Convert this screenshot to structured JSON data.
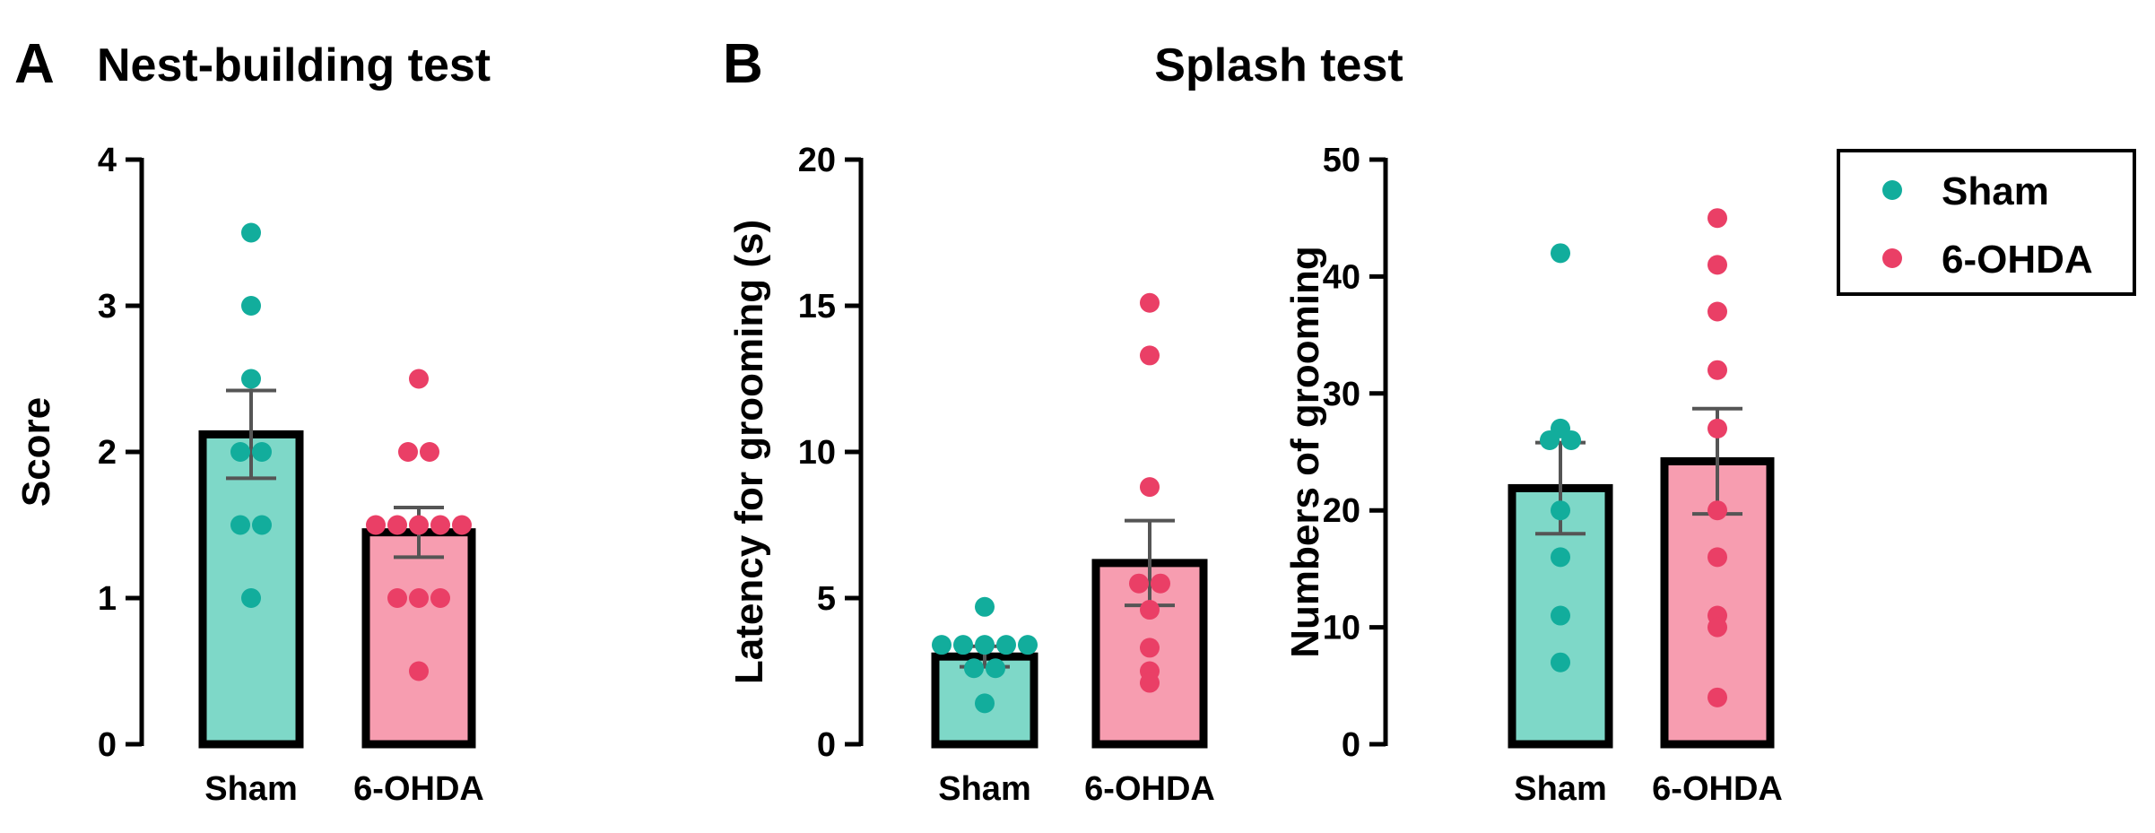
{
  "panels": [
    {
      "letter": "A",
      "title": "Nest-building test"
    },
    {
      "letter": "B",
      "title": "Splash test"
    }
  ],
  "legend": {
    "entries": [
      {
        "label": "Sham",
        "color": "#12ad9c"
      },
      {
        "label": "6-OHDA",
        "color": "#ea3f66"
      }
    ]
  },
  "colors": {
    "sham_bar": "#7ed8c8",
    "sham_dot": "#12ad9c",
    "ohda_bar": "#f79db0",
    "ohda_dot": "#ea3f66",
    "axis": "#000000",
    "errorbar": "#555555"
  },
  "chart_data": [
    {
      "type": "bar",
      "title": "Nest-building test",
      "xlabel": "",
      "ylabel": "Score",
      "ylim": [
        0,
        4
      ],
      "yticks": [
        0,
        1,
        2,
        3,
        4
      ],
      "categories": [
        "Sham",
        "6-OHDA"
      ],
      "series": [
        {
          "name": "Sham",
          "value": 2.12,
          "sem": 0.3,
          "points": [
            3.5,
            3.0,
            2.5,
            2.0,
            2.0,
            1.5,
            1.5,
            1.0
          ]
        },
        {
          "name": "6-OHDA",
          "value": 1.45,
          "sem": 0.17,
          "points": [
            2.5,
            2.0,
            2.0,
            1.5,
            1.5,
            1.5,
            1.5,
            1.5,
            1.0,
            1.0,
            1.0,
            0.5
          ]
        }
      ]
    },
    {
      "type": "bar",
      "title": "Splash test",
      "xlabel": "",
      "ylabel": "Latency for grooming (s)",
      "ylim": [
        0,
        20
      ],
      "yticks": [
        0,
        5,
        10,
        15,
        20
      ],
      "categories": [
        "Sham",
        "6-OHDA"
      ],
      "series": [
        {
          "name": "Sham",
          "value": 3.0,
          "sem": 0.35,
          "points": [
            4.7,
            3.4,
            3.4,
            3.4,
            3.4,
            3.4,
            2.6,
            2.6,
            1.4
          ]
        },
        {
          "name": "6-OHDA",
          "value": 6.2,
          "sem": 1.45,
          "points": [
            15.1,
            13.3,
            8.8,
            5.5,
            5.5,
            4.6,
            3.3,
            2.5,
            2.1
          ]
        }
      ]
    },
    {
      "type": "bar",
      "title": "Splash test",
      "xlabel": "",
      "ylabel": "Numbers of grooming",
      "ylim": [
        0,
        50
      ],
      "yticks": [
        0,
        10,
        20,
        30,
        40,
        50
      ],
      "categories": [
        "Sham",
        "6-OHDA"
      ],
      "series": [
        {
          "name": "Sham",
          "value": 21.9,
          "sem": 3.9,
          "points": [
            42,
            27,
            26,
            26,
            20,
            16,
            11,
            7
          ]
        },
        {
          "name": "6-OHDA",
          "value": 24.2,
          "sem": 4.5,
          "points": [
            45,
            41,
            37,
            32,
            27,
            20,
            16,
            11,
            10,
            4
          ]
        }
      ]
    }
  ]
}
